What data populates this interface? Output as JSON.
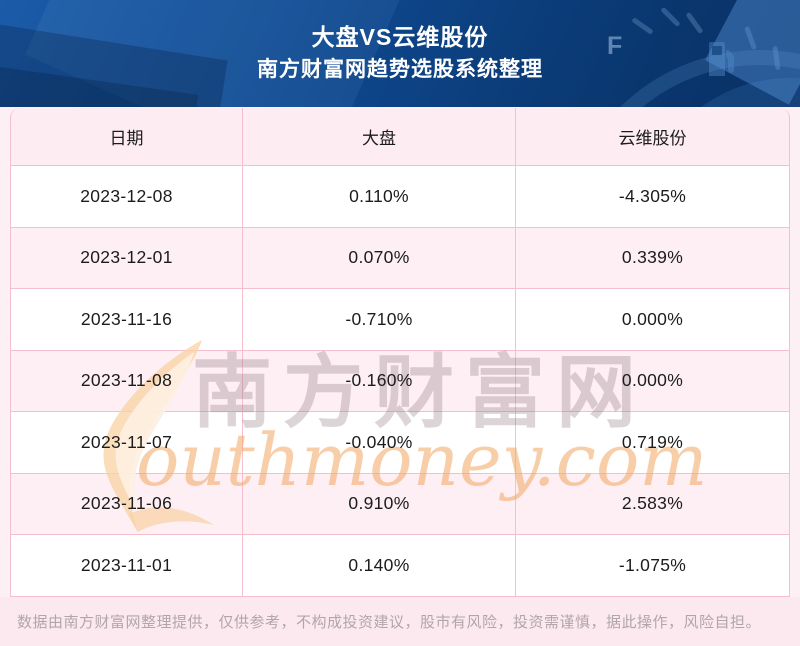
{
  "header": {
    "title": "大盘VS云维股份",
    "subtitle": "南方财富网趋势选股系统整理",
    "gauge_label": "F"
  },
  "table": {
    "columns": [
      "日期",
      "大盘",
      "云维股份"
    ],
    "rows": [
      [
        "2023-12-08",
        "0.110%",
        "-4.305%"
      ],
      [
        "2023-12-01",
        "0.070%",
        "0.339%"
      ],
      [
        "2023-11-16",
        "-0.710%",
        "0.000%"
      ],
      [
        "2023-11-08",
        "-0.160%",
        "0.000%"
      ],
      [
        "2023-11-07",
        "-0.040%",
        "0.719%"
      ],
      [
        "2023-11-06",
        "0.910%",
        "2.583%"
      ],
      [
        "2023-11-01",
        "0.140%",
        "-1.075%"
      ]
    ]
  },
  "watermark": {
    "cn": "南方财富网",
    "en": "outhmoney.com"
  },
  "footer": {
    "disclaimer": "数据由南方财富网整理提供，仅供参考，不构成投资建议，股市有风险，投资需谨慎，据此操作，风险自担。"
  },
  "colors": {
    "page_pink": "#fdf0f4",
    "header_blue_dark": "#0a376f",
    "header_blue": "#0e478d",
    "header_blue_light": "#1b5ba8",
    "table_header_pink": "#fdecf1",
    "row_alt_pink": "#fdeff3",
    "row_white": "#ffffff",
    "border_pink": "#f5bfce",
    "footer_pink": "#fce9ef",
    "footer_text_gray": "#b0a6aa",
    "cell_text": "#1c1c1c",
    "title_white": "#ffffff",
    "watermark_orange": "#f3a662",
    "swoosh_orange": "#f8d2a2"
  },
  "chart_data": {
    "type": "table",
    "title": "大盘VS云维股份",
    "subtitle": "南方财富网趋势选股系统整理",
    "columns": [
      "日期",
      "大盘",
      "云维股份"
    ],
    "rows": [
      [
        "2023-12-08",
        "0.110%",
        "-4.305%"
      ],
      [
        "2023-12-01",
        "0.070%",
        "0.339%"
      ],
      [
        "2023-11-16",
        "-0.710%",
        "0.000%"
      ],
      [
        "2023-11-08",
        "-0.160%",
        "0.000%"
      ],
      [
        "2023-11-07",
        "-0.040%",
        "0.719%"
      ],
      [
        "2023-11-06",
        "0.910%",
        "2.583%"
      ],
      [
        "2023-11-01",
        "0.140%",
        "-1.075%"
      ]
    ]
  }
}
